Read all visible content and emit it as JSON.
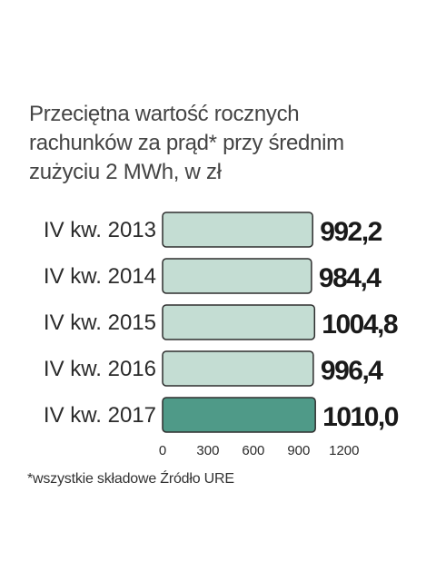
{
  "title_lines": [
    "Przeciętna wartość rocznych",
    "rachunków za prąd* przy średnim",
    "zużyciu 2 MWh, w zł"
  ],
  "chart_data": {
    "type": "bar",
    "orientation": "horizontal",
    "categories": [
      "IV kw. 2013",
      "IV kw. 2014",
      "IV kw. 2015",
      "IV kw. 2016",
      "IV kw. 2017"
    ],
    "values": [
      992.2,
      984.4,
      1004.8,
      996.4,
      1010.0
    ],
    "value_labels": [
      "992,2",
      "984,4",
      "1004,8",
      "996,4",
      "1010,0"
    ],
    "xticks": [
      0,
      300,
      600,
      900,
      1200
    ],
    "xlim": [
      0,
      1200
    ],
    "colors": {
      "bar": "#c4ddd3",
      "highlight_bar": "#4f9a88",
      "bar_outline": "#2e2e2e"
    },
    "highlight_index": 4
  },
  "footnote": "*wszystkie składowe Źródło URE"
}
